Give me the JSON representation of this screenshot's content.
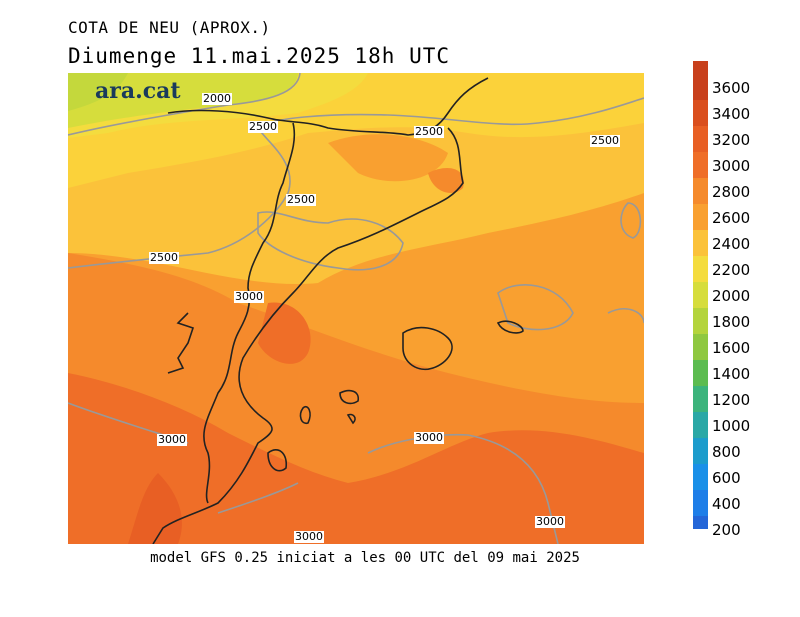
{
  "title": "COTA DE NEU (APROX.)",
  "subtitle": "Diumenge  11.mai.2025  18h  UTC",
  "footer": "model GFS 0.25 iniciat a les 00 UTC del 09 mai 2025",
  "logo": "ara.cat",
  "colorbar": {
    "ticks": [
      "3600",
      "3400",
      "3200",
      "3000",
      "2800",
      "2600",
      "2400",
      "2200",
      "2000",
      "1800",
      "1600",
      "1400",
      "1200",
      "1000",
      "800",
      "600",
      "400",
      "200"
    ],
    "colors": [
      "#c8401c",
      "#da4f1e",
      "#e85f24",
      "#ef6e28",
      "#f58a2c",
      "#f9a030",
      "#fbc23a",
      "#f4dc3e",
      "#d6dd3c",
      "#b4d43c",
      "#8fc840",
      "#5cbc50",
      "#3cb47c",
      "#2aa8a6",
      "#1c9ccc",
      "#1a90e8",
      "#1e7ee8",
      "#2466d8"
    ]
  },
  "contour_labels": [
    {
      "text": "2000"
    },
    {
      "text": "2500"
    },
    {
      "text": "2500"
    },
    {
      "text": "2500"
    },
    {
      "text": "2500"
    },
    {
      "text": "2500"
    },
    {
      "text": "3000"
    },
    {
      "text": "3000"
    },
    {
      "text": "3000"
    },
    {
      "text": "3000"
    },
    {
      "text": "3000"
    }
  ]
}
